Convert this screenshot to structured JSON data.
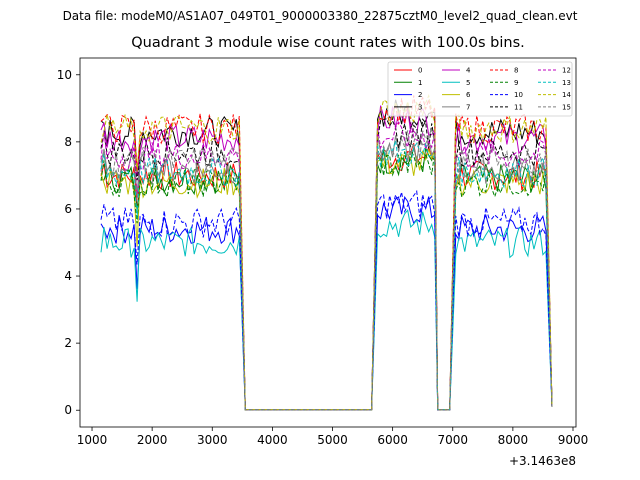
{
  "figure": {
    "suptitle": "Data file: modeM0/AS1A07_049T01_9000003380_22875cztM0_level2_quad_clean.evt",
    "title": "Quadrant 3 module wise count rates with 100.0s bins."
  },
  "chart_data": {
    "type": "line",
    "title": "Quadrant 3 module wise count rates with 100.0s bins.",
    "xlabel": "",
    "ylabel": "",
    "x_offset_label": "+3.1463e8",
    "xlim": [
      800,
      9050
    ],
    "ylim": [
      -0.5,
      10.5
    ],
    "x_ticks": [
      1000,
      2000,
      3000,
      4000,
      5000,
      6000,
      7000,
      8000,
      9000
    ],
    "x_tick_labels": [
      "1000",
      "2000",
      "3000",
      "4000",
      "5000",
      "6000",
      "7000",
      "8000",
      "9000"
    ],
    "y_ticks": [
      0,
      2,
      4,
      6,
      8,
      10
    ],
    "y_tick_labels": [
      "0",
      "2",
      "4",
      "6",
      "8",
      "10"
    ],
    "grid": false,
    "legend": {
      "placement": "top-right",
      "columns": 4
    },
    "series": [
      {
        "name": "0",
        "color": "#ff0000",
        "dash": "solid",
        "level": 7.0
      },
      {
        "name": "1",
        "color": "#008000",
        "dash": "solid",
        "level": 6.9
      },
      {
        "name": "2",
        "color": "#0000ff",
        "dash": "solid",
        "level": 5.4
      },
      {
        "name": "3",
        "color": "#000000",
        "dash": "solid",
        "level": 8.3
      },
      {
        "name": "4",
        "color": "#bf00bf",
        "dash": "solid",
        "level": 8.1
      },
      {
        "name": "5",
        "color": "#00bfbf",
        "dash": "solid",
        "level": 5.0
      },
      {
        "name": "6",
        "color": "#bfbf00",
        "dash": "solid",
        "level": 6.8
      },
      {
        "name": "7",
        "color": "#808080",
        "dash": "solid",
        "level": 7.2
      },
      {
        "name": "8",
        "color": "#ff0000",
        "dash": "dashed",
        "level": 8.4
      },
      {
        "name": "9",
        "color": "#008000",
        "dash": "dashed",
        "level": 6.8
      },
      {
        "name": "10",
        "color": "#0000ff",
        "dash": "dashed",
        "level": 5.6
      },
      {
        "name": "11",
        "color": "#000000",
        "dash": "dashed",
        "level": 7.7
      },
      {
        "name": "12",
        "color": "#bf00bf",
        "dash": "dashed",
        "level": 7.6
      },
      {
        "name": "13",
        "color": "#00bfbf",
        "dash": "dashed",
        "level": 7.1
      },
      {
        "name": "14",
        "color": "#bfbf00",
        "dash": "dashed",
        "level": 8.4
      },
      {
        "name": "15",
        "color": "#808080",
        "dash": "dashed",
        "level": 7.4
      }
    ],
    "segments": [
      {
        "x_start": 1150,
        "x_end": 3450,
        "step": 50,
        "dip_at": 1750
      },
      {
        "x_start": 3550,
        "x_end": 5650,
        "zero": true
      },
      {
        "x_start": 5750,
        "x_end": 6700,
        "step": 50
      },
      {
        "x_start": 6750,
        "x_end": 6950,
        "zero": true
      },
      {
        "x_start": 7050,
        "x_end": 8550,
        "step": 50
      }
    ],
    "end_value": 0.1,
    "end_x": 8650
  }
}
